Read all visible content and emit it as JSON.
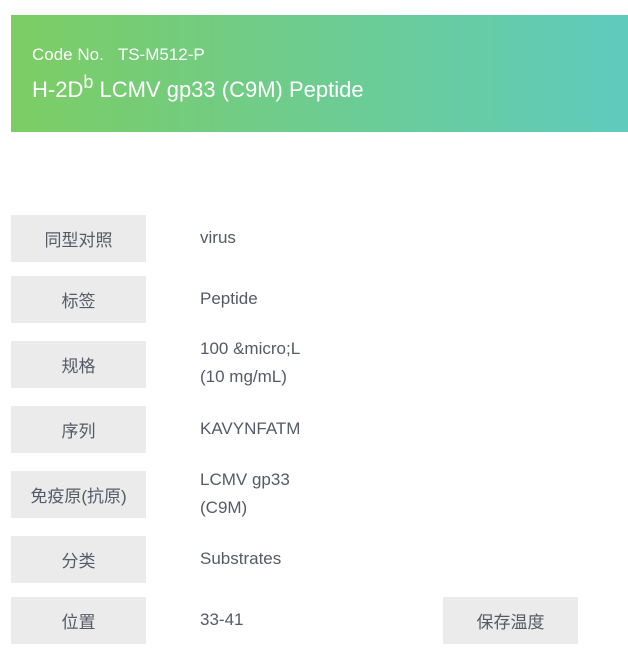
{
  "header": {
    "code_label": "Code No.",
    "code_value": "TS-M512-P",
    "title_prefix": "H-2D",
    "title_sup": "b",
    "title_rest": " LCMV gp33 (C9M) Peptide"
  },
  "colors": {
    "gradient_start": "#7ccd63",
    "gradient_end": "#5fcbbd",
    "label_bg": "#ebebeb"
  },
  "rows": [
    {
      "label": "同型对照",
      "value": "virus"
    },
    {
      "label": "标签",
      "value": "Peptide"
    },
    {
      "label": "规格",
      "value": "100 &micro;L",
      "value2": "(10 mg/mL)"
    },
    {
      "label": "序列",
      "value": "KAVYNFATM"
    },
    {
      "label": "免疫原(抗原)",
      "value": "LCMV gp33",
      "value2": "(C9M)"
    },
    {
      "label": "分类",
      "value": "Substrates"
    },
    {
      "label": "位置",
      "value": "33-41"
    }
  ],
  "storage_label": "保存温度"
}
